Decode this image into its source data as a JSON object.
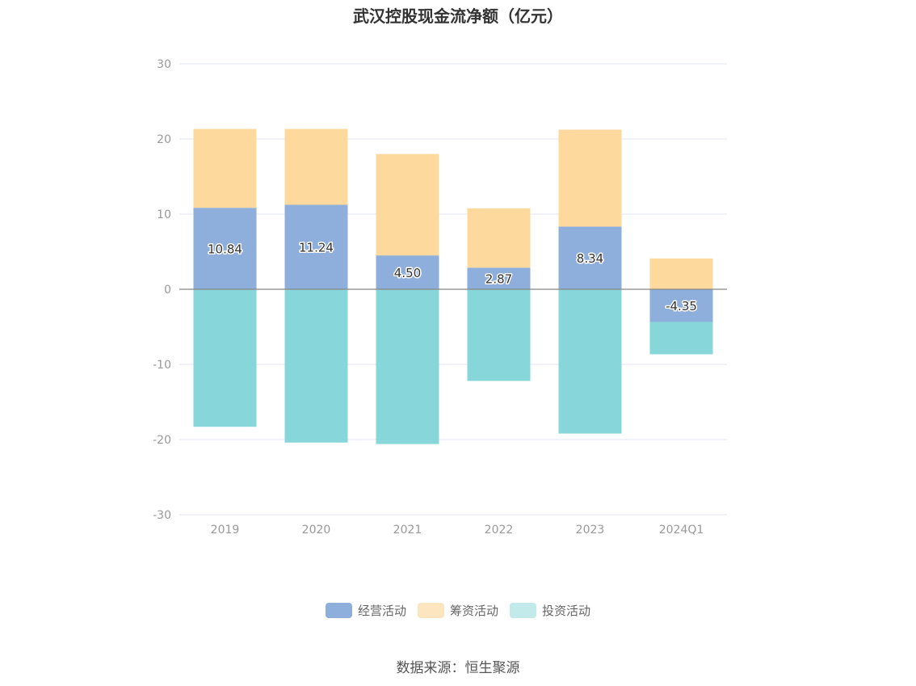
{
  "title": "武汉控股现金流净额（亿元）",
  "source": "数据来源：恒生聚源",
  "chart_data": {
    "type": "bar",
    "stacked": true,
    "title": "武汉控股现金流净额（亿元）",
    "categories": [
      "2019",
      "2020",
      "2021",
      "2022",
      "2023",
      "2024Q1"
    ],
    "ylim": [
      -30,
      30
    ],
    "yticks": [
      30,
      20,
      10,
      0,
      -10,
      -20,
      -30
    ],
    "grid": true,
    "legend_position": "bottom",
    "series": [
      {
        "name": "经营活动",
        "color": "#8eaedb",
        "values": [
          10.84,
          11.24,
          4.5,
          2.87,
          8.34,
          -4.35
        ],
        "labels": [
          "10.84",
          "11.24",
          "4.50",
          "2.87",
          "8.34",
          "-4.35"
        ]
      },
      {
        "name": "筹资活动",
        "color": "#fed99d",
        "values": [
          10.5,
          10.1,
          13.5,
          7.9,
          12.9,
          4.1
        ]
      },
      {
        "name": "投资活动",
        "color": "#87d6d9",
        "values": [
          -18.3,
          -20.4,
          -20.6,
          -12.2,
          -19.2,
          -4.3
        ]
      }
    ],
    "legend": [
      {
        "name": "经营活动",
        "color": "#8eaedb"
      },
      {
        "name": "筹资活动",
        "color": "#fde5bf"
      },
      {
        "name": "投资活动",
        "color": "#c2eaeb"
      }
    ]
  }
}
